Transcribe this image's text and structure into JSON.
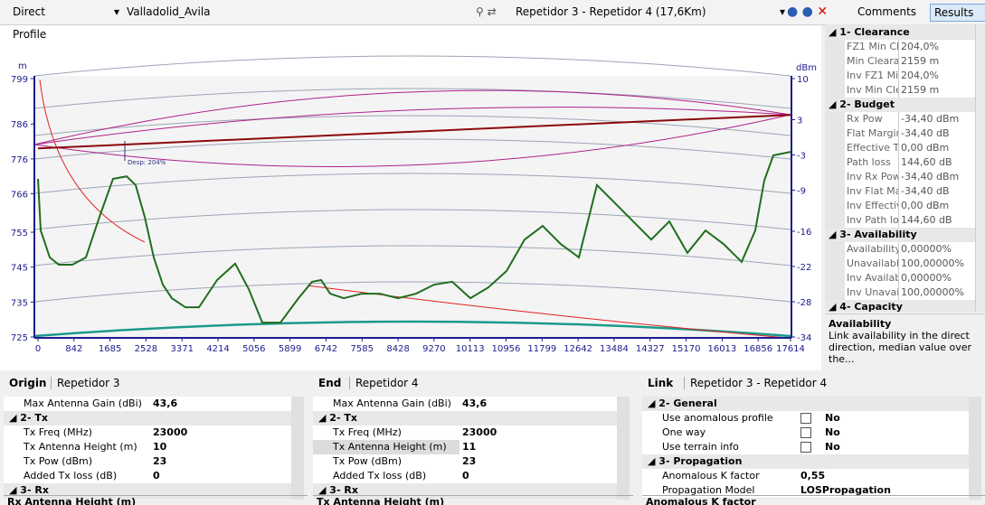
{
  "toolbar": {
    "mode": "Direct",
    "project": "Valladolid_Avila",
    "link": "Repetidor 3 - Repetidor 4 (17,6Km)",
    "buttons": [
      "Comments",
      "Results"
    ]
  },
  "profile": {
    "title": "Profile",
    "y_unit": "m",
    "y2_unit": "dBm",
    "annotation": "Desp: 204%",
    "ylim": [
      725,
      799
    ],
    "yticks": [
      725,
      735,
      745,
      755,
      766,
      776,
      786,
      799
    ],
    "y2lim": [
      -34,
      10
    ],
    "y2ticks": [
      -34,
      -28,
      -22,
      -16,
      -9,
      -3,
      3,
      10
    ],
    "xlim": [
      0,
      17614
    ],
    "xticks": [
      0,
      842,
      1685,
      2528,
      3371,
      4214,
      5056,
      5899,
      6742,
      7585,
      8428,
      9270,
      10113,
      10956,
      11799,
      12642,
      13484,
      14327,
      15170,
      16013,
      16856,
      17614
    ],
    "terrain": {
      "color": "#1f6e1f",
      "x": [
        0,
        64,
        275,
        487,
        804,
        1122,
        1439,
        1757,
        2075,
        2286,
        2498,
        2710,
        2922,
        3133,
        3451,
        3768,
        4192,
        4615,
        4933,
        5250,
        5674,
        6097,
        6415,
        6627,
        6838,
        7156,
        7579,
        8003,
        8426,
        8850,
        9273,
        9696,
        10120,
        10543,
        10967,
        11390,
        11813,
        12237,
        12660,
        13083,
        13507,
        13930,
        14354,
        14777,
        15200,
        15624,
        16047,
        16470,
        16788,
        16999,
        17211,
        17614
      ],
      "values": [
        770.3,
        755.5,
        747.8,
        745.7,
        745.7,
        747.8,
        759.4,
        770.3,
        771,
        768.5,
        759.4,
        747.8,
        740,
        736.1,
        733.5,
        733.5,
        741.3,
        746,
        738.7,
        729.1,
        729.1,
        736.1,
        740.8,
        741.3,
        737.4,
        736.1,
        737.4,
        737.4,
        736.1,
        737.4,
        740,
        740.8,
        736.1,
        739.2,
        743.9,
        752.9,
        756.8,
        751.6,
        747.8,
        768.5,
        763.3,
        758.1,
        752.9,
        758.1,
        749.1,
        755.5,
        751.6,
        746.5,
        755.5,
        769.8,
        777,
        778
      ]
    },
    "los": {
      "color": "#8b0a0a",
      "x": [
        0,
        17614
      ],
      "values": [
        779,
        788.6
      ]
    }
  },
  "results": {
    "sections": [
      {
        "title": "1- Clearance",
        "rows": [
          [
            "FZ1 Min Cl",
            "204,0%"
          ],
          [
            "Min Cleara",
            "2159 m"
          ],
          [
            "Inv FZ1 Mi",
            "204,0%"
          ],
          [
            "Inv Min Cle",
            "2159 m"
          ]
        ]
      },
      {
        "title": "2- Budget",
        "rows": [
          [
            "Rx Pow",
            "-34,40 dBm"
          ],
          [
            "Flat Margin",
            "-34,40 dB"
          ],
          [
            "Effective Tl",
            "0,00 dBm"
          ],
          [
            "Path loss",
            "144,60 dB"
          ],
          [
            "Inv Rx Pow",
            "-34,40 dBm"
          ],
          [
            "Inv Flat Ma",
            "-34,40 dB"
          ],
          [
            "Inv Effectiv",
            "0,00 dBm"
          ],
          [
            "Inv Path los",
            "144,60 dB"
          ]
        ]
      },
      {
        "title": "3- Availability",
        "rows": [
          [
            "Availability",
            "0,00000%"
          ],
          [
            "Unavailabl",
            "100,00000%"
          ],
          [
            "Inv Availab",
            "0,00000%"
          ],
          [
            "Inv Unavail",
            "100,00000%"
          ]
        ]
      },
      {
        "title": "4- Capacity",
        "rows": []
      }
    ],
    "description": {
      "title": "Availability",
      "text": "Link availability in the direct direction, median value over the..."
    }
  },
  "panels": [
    {
      "label": "Origin",
      "name": "Repetidor 3",
      "footer": "Rx Antenna Height (m)",
      "rows": [
        {
          "name": "Max Antenna Gain (dBi)",
          "value": "43,6"
        },
        {
          "section": "2- Tx"
        },
        {
          "name": "Tx Freq (MHz)",
          "value": "23000"
        },
        {
          "name": "Tx Antenna Height (m)",
          "value": "10"
        },
        {
          "name": "Tx Pow (dBm)",
          "value": "23"
        },
        {
          "name": "Added Tx loss (dB)",
          "value": "0"
        },
        {
          "section": "3- Rx"
        }
      ]
    },
    {
      "label": "End",
      "name": "Repetidor 4",
      "footer": "Tx Antenna Height (m)",
      "rows": [
        {
          "name": "Max Antenna Gain (dBi)",
          "value": "43,6"
        },
        {
          "section": "2- Tx"
        },
        {
          "name": "Tx Freq (MHz)",
          "value": "23000"
        },
        {
          "name": "Tx Antenna Height (m)",
          "value": "11"
        },
        {
          "name": "Tx Pow (dBm)",
          "value": "23"
        },
        {
          "name": "Added Tx loss (dB)",
          "value": "0"
        },
        {
          "section": "3- Rx"
        }
      ]
    },
    {
      "label": "Link",
      "name": "Repetidor 3 - Repetidor 4",
      "footer": "Anomalous K factor",
      "rows": [
        {
          "section": "2- General"
        },
        {
          "name": "Use anomalous profile",
          "value": "No",
          "check": false
        },
        {
          "name": "One way",
          "value": "No",
          "check": false
        },
        {
          "name": "Use terrain info",
          "value": "No",
          "check": false
        },
        {
          "section": "3- Propagation"
        },
        {
          "name": "Anomalous K factor",
          "value": "0,55"
        },
        {
          "name": "Propagation Model",
          "value": "LOSPropagation"
        }
      ]
    }
  ]
}
